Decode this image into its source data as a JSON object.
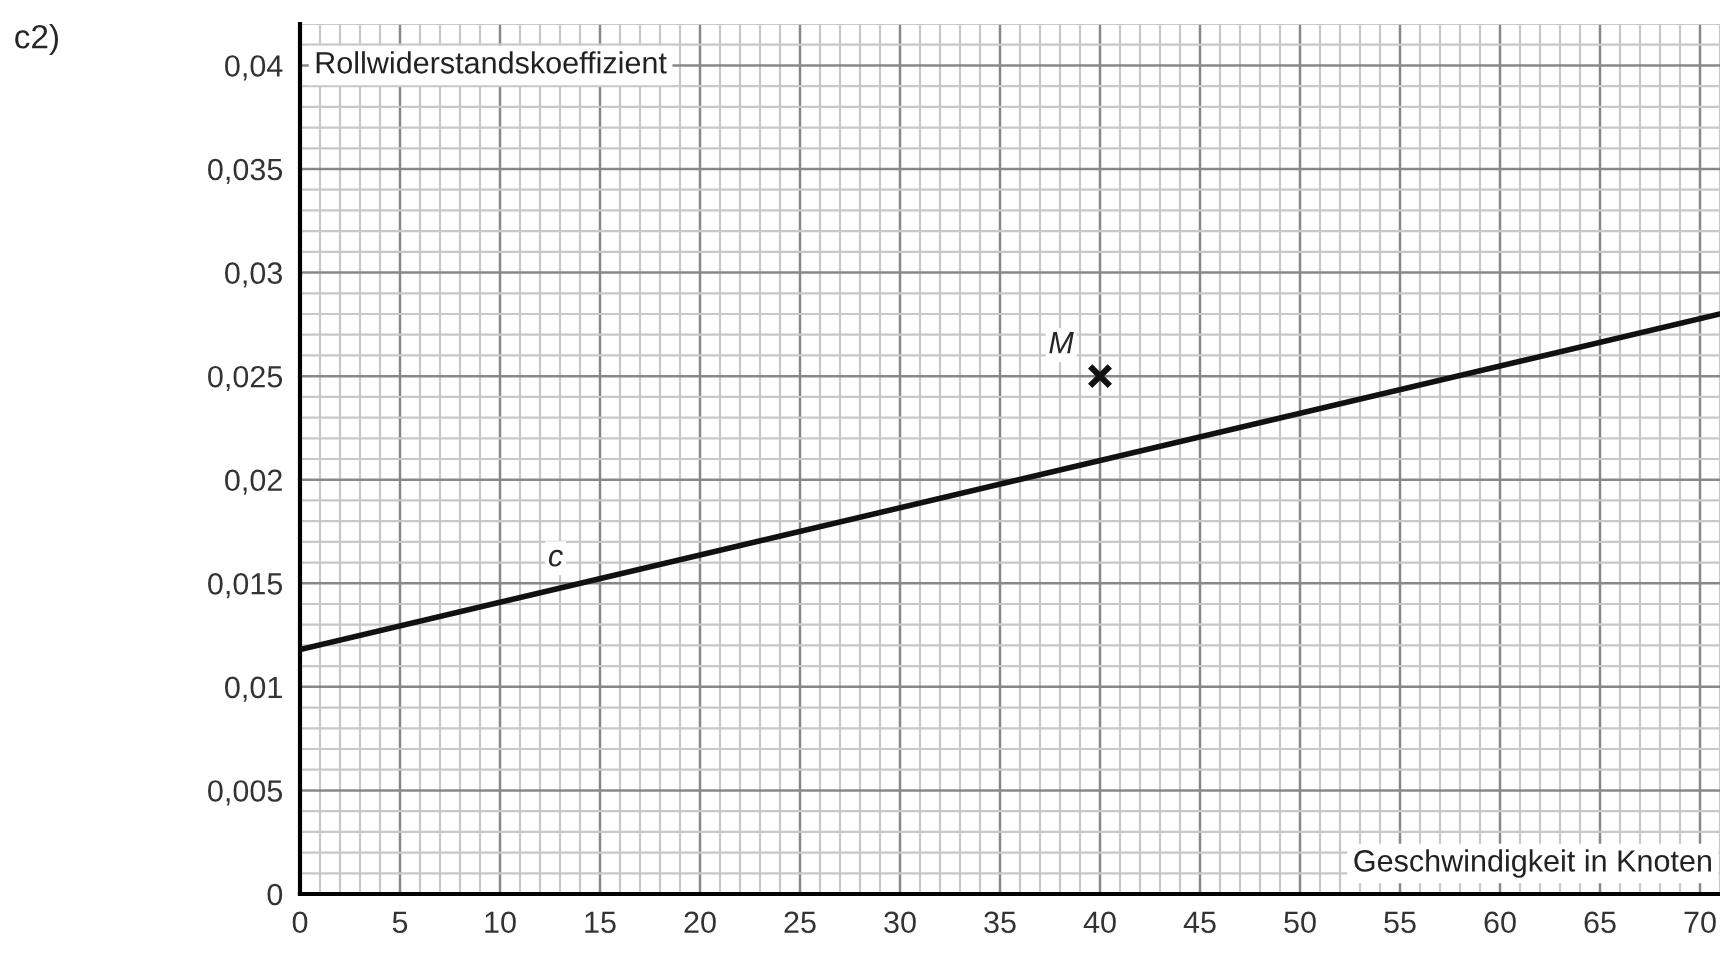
{
  "chart_data": {
    "type": "line",
    "xlabel": "Geschwindigkeit in Knoten",
    "ylabel": "Rollwiderstandskoeffizient",
    "annotations": [
      "c2)"
    ],
    "series": [
      {
        "name": "c",
        "color": "#111111",
        "x": [
          0,
          71
        ],
        "values": [
          0.0118,
          0.028
        ]
      },
      {
        "name": "M",
        "type": "scatter",
        "marker": "cross",
        "color": "#111111",
        "x": [
          40
        ],
        "values": [
          0.025
        ]
      }
    ],
    "xlim": [
      0,
      71
    ],
    "ylim": [
      0,
      0.042
    ],
    "xticks": [
      0,
      5,
      10,
      15,
      20,
      25,
      30,
      35,
      40,
      45,
      50,
      55,
      60,
      65,
      70
    ],
    "yticks": [
      0,
      {
        "value": 0.005,
        "label": "0,005"
      },
      {
        "value": 0.01,
        "label": "0,01"
      },
      {
        "value": 0.015,
        "label": "0,015"
      },
      {
        "value": 0.02,
        "label": "0,02"
      },
      {
        "value": 0.025,
        "label": "0,025"
      },
      {
        "value": 0.03,
        "label": "0,03"
      },
      {
        "value": 0.035,
        "label": "0,035"
      },
      {
        "value": 0.04,
        "label": "0,04"
      }
    ],
    "grid": true,
    "legend": false
  }
}
